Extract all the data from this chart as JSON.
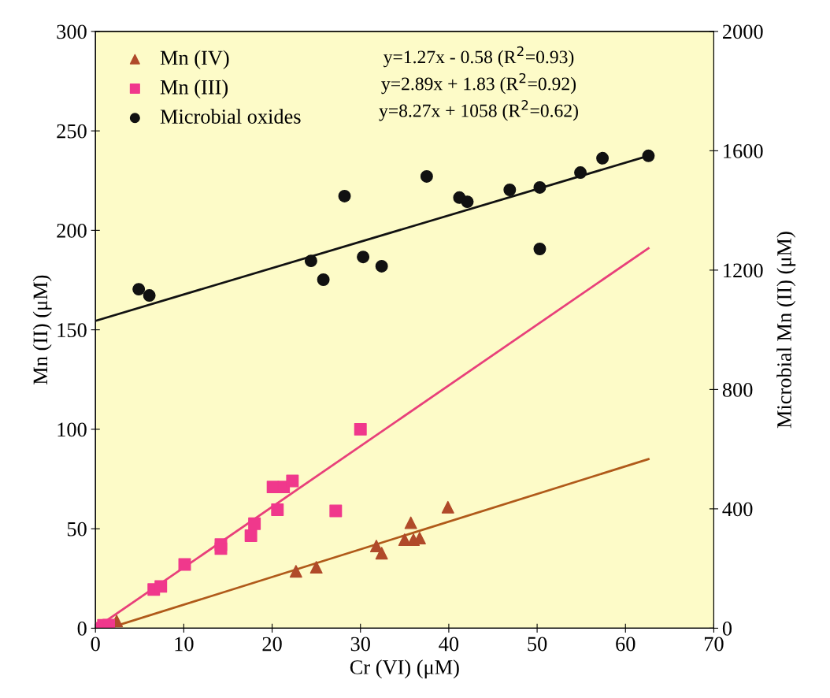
{
  "chart_data": {
    "type": "scatter",
    "xlabel": "Cr (VI) (μM)",
    "ylabel": "Mn (II) (μM)",
    "y2label": "Microbial Mn (II) (μM)",
    "xlim": [
      0,
      70
    ],
    "xticks": [
      0,
      10,
      20,
      30,
      40,
      50,
      60,
      70
    ],
    "ylim": [
      0,
      300
    ],
    "yticks": [
      0,
      50,
      100,
      150,
      200,
      250,
      300
    ],
    "y2lim": [
      0,
      2000
    ],
    "y2ticks": [
      0,
      400,
      800,
      1200,
      1600,
      2000
    ],
    "grid": false,
    "legend": "top left",
    "annotations": [
      "y=1.27x - 0.58 (R$^{2}$=0.93)",
      "y=2.89x + 1.83 (R$^{2}$=0.92)",
      "y=8.27x + 1058 (R$^{2}$=0.62)"
    ],
    "series": [
      {
        "name": "Mn (IV)",
        "color": "#b04a2a",
        "marker": "triangle",
        "x": [
          2.4,
          22.7,
          25,
          31.8,
          32.4,
          35,
          35.7,
          36,
          36.7,
          39.9
        ],
        "values": [
          3.6,
          28.6,
          30.6,
          41.3,
          37.7,
          44.5,
          53,
          44.5,
          45.3,
          60.8
        ]
      },
      {
        "name": "Mn (III)",
        "color": "#f0388c",
        "marker": "square",
        "x": [
          0.2,
          0.9,
          1.5,
          6.6,
          7.4,
          10.1,
          14.2,
          14.2,
          17.6,
          18,
          20.1,
          20.6,
          21.3,
          22.3,
          27.2,
          30
        ],
        "values": [
          0,
          1.5,
          1.6,
          19.5,
          21,
          32,
          42,
          40,
          46.5,
          52.5,
          71,
          59.6,
          71,
          74,
          59,
          100
        ]
      },
      {
        "name": "Microbial oxides",
        "color": "#111111",
        "marker": "circle",
        "axis": "y2",
        "x": [
          4.9,
          6.1,
          24.4,
          25.8,
          28.2,
          30.3,
          32.4,
          37.5,
          41.2,
          42.1,
          46.9,
          50.3,
          50.3,
          54.9,
          57.4,
          62.6
        ],
        "values": [
          1136,
          1115,
          1231,
          1168,
          1448,
          1244,
          1213,
          1514,
          1443,
          1429,
          1469,
          1477,
          1271,
          1527,
          1575,
          1583
        ]
      },
      {
        "type": "line",
        "color": "#b05a1a",
        "marker": "none",
        "x": [
          1.5,
          62.6
        ],
        "values": [
          0,
          85
        ]
      },
      {
        "type": "line",
        "color": "#e8407a",
        "marker": "none",
        "x": [
          0,
          62.6
        ],
        "values": [
          0,
          191
        ]
      },
      {
        "type": "line",
        "color": "#111111",
        "marker": "none",
        "axis": "y2",
        "x": [
          0,
          62.6
        ],
        "values": [
          1030,
          1583
        ]
      }
    ]
  }
}
